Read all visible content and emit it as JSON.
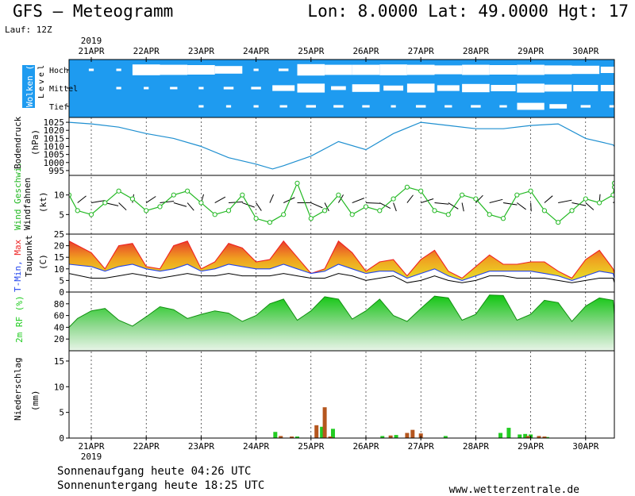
{
  "header": {
    "title": "GFS – Meteogramm",
    "coords": "Lon: 8.0000 Lat: 49.0000 Hgt: 17",
    "run": "Lauf: 12Z"
  },
  "footer": {
    "sunrise": "Sonnenaufgang heute 04:26 UTC",
    "sunset": "Sonnenuntergang heute 18:25 UTC",
    "site": "www.wetterzentrale.de"
  },
  "colors": {
    "cloud_bg": "#1e9bf0",
    "pressure": "#1e8fd0",
    "wind": "#22b822",
    "tmin": "#2244ee",
    "tmax": "#ee2222",
    "dewpoint": "#000000",
    "rh": "#22cc22",
    "precip_a": "#22cc22",
    "precip_b": "#b5561e"
  },
  "chart_data": [
    {
      "type": "heatmap",
      "title": "Wolken (%)",
      "ylabel": "Level",
      "levels": [
        "Hoch",
        "Mittel",
        "Tief"
      ],
      "day_labels": [
        "21APR",
        "22APR",
        "23APR",
        "24APR",
        "25APR",
        "26APR",
        "27APR",
        "28APR",
        "29APR",
        "30APR"
      ],
      "year": "2019",
      "x_days": [
        0,
        0.5,
        1,
        1.5,
        2,
        2.5,
        3,
        3.5,
        4,
        4.5,
        5,
        5.5,
        6,
        6.5,
        7,
        7.5,
        8,
        8.5,
        9,
        9.5,
        10
      ],
      "cover_hoch": [
        90,
        90,
        15,
        20,
        25,
        40,
        90,
        80,
        10,
        20,
        20,
        15,
        20,
        30,
        20,
        25,
        20,
        30,
        35,
        50,
        55
      ],
      "cover_mittel": [
        95,
        90,
        90,
        85,
        90,
        80,
        80,
        55,
        30,
        70,
        40,
        60,
        30,
        55,
        35,
        50,
        30,
        45,
        50,
        50,
        55
      ],
      "cover_tief": [
        95,
        95,
        95,
        95,
        90,
        90,
        90,
        85,
        80,
        80,
        85,
        90,
        80,
        85,
        80,
        85,
        45,
        65,
        80,
        85,
        40
      ]
    },
    {
      "type": "line",
      "ylabel": "Bodendruck",
      "unit": "(hPa)",
      "yticks": [
        995,
        1000,
        1005,
        1010,
        1015,
        1020,
        1025
      ],
      "ylim": [
        992,
        1028
      ],
      "x_days": [
        -0.5,
        0,
        0.5,
        1,
        1.5,
        2,
        2.5,
        3,
        3.3,
        3.5,
        4,
        4.5,
        5,
        5.5,
        6,
        6.5,
        7,
        7.5,
        8,
        8.5,
        9,
        9.5,
        10
      ],
      "values": [
        1025,
        1024,
        1022,
        1018,
        1015,
        1010,
        1003,
        999,
        996,
        998,
        1004,
        1013,
        1008,
        1018,
        1025,
        1023,
        1021,
        1021,
        1023,
        1024,
        1015,
        1011,
        1010
      ]
    },
    {
      "type": "line",
      "ylabel": "Wind Geschwi.",
      "ylabel2": "Windfahnen",
      "unit": "(kt)",
      "yticks": [
        5,
        10
      ],
      "ylim": [
        0,
        15
      ],
      "x_days": [
        -0.5,
        -0.25,
        0,
        0.25,
        0.5,
        0.75,
        1,
        1.25,
        1.5,
        1.75,
        2,
        2.25,
        2.5,
        2.75,
        3,
        3.25,
        3.5,
        3.75,
        4,
        4.25,
        4.5,
        4.75,
        5,
        5.25,
        5.5,
        5.75,
        6,
        6.25,
        6.5,
        6.75,
        7,
        7.25,
        7.5,
        7.75,
        8,
        8.25,
        8.5,
        8.75,
        9,
        9.25,
        9.5,
        9.75,
        10
      ],
      "values": [
        10,
        6,
        5,
        8,
        11,
        9,
        6,
        7,
        10,
        11,
        8,
        5,
        6,
        10,
        4,
        3,
        5,
        13,
        4,
        6,
        10,
        5,
        7,
        6,
        9,
        12,
        11,
        6,
        5,
        10,
        9,
        5,
        4,
        10,
        11,
        6,
        3,
        6,
        9,
        8,
        10,
        12,
        13
      ]
    },
    {
      "type": "line",
      "ylabel": "Taupunkt",
      "unit": "(C)",
      "legend": [
        "T-Min,",
        "Max"
      ],
      "yticks": [
        0,
        5,
        10,
        15,
        20,
        25
      ],
      "ylim": [
        0,
        25
      ],
      "x_days": [
        -0.5,
        0,
        0.25,
        0.5,
        0.75,
        1,
        1.25,
        1.5,
        1.75,
        2,
        2.25,
        2.5,
        2.75,
        3,
        3.25,
        3.5,
        3.75,
        4,
        4.25,
        4.5,
        4.75,
        5,
        5.25,
        5.5,
        5.75,
        6,
        6.25,
        6.5,
        6.75,
        7,
        7.25,
        7.5,
        7.75,
        8,
        8.25,
        8.5,
        8.75,
        9,
        9.25,
        9.5,
        9.75,
        10
      ],
      "series": [
        {
          "name": "Max",
          "values": [
            22,
            17,
            10,
            20,
            21,
            11,
            10,
            20,
            22,
            10,
            13,
            21,
            19,
            13,
            14,
            22,
            15,
            8,
            10,
            22,
            17,
            9,
            13,
            14,
            7,
            14,
            18,
            9,
            6,
            11,
            16,
            12,
            12,
            13,
            13,
            9,
            6,
            14,
            18,
            10,
            8,
            10
          ]
        },
        {
          "name": "T-Min,",
          "values": [
            12,
            11,
            9,
            11,
            12,
            10,
            9,
            10,
            12,
            9,
            10,
            12,
            11,
            10,
            10,
            12,
            10,
            8,
            9,
            12,
            10,
            8,
            9,
            9,
            6,
            8,
            10,
            7,
            5,
            7,
            9,
            9,
            9,
            9,
            8,
            7,
            5,
            7,
            9,
            8,
            6,
            7
          ]
        },
        {
          "name": "Taupunkt",
          "values": [
            8,
            6,
            6,
            7,
            8,
            7,
            6,
            7,
            8,
            7,
            7,
            8,
            7,
            7,
            7,
            8,
            7,
            6,
            6,
            8,
            7,
            5,
            6,
            7,
            4,
            5,
            7,
            5,
            4,
            5,
            7,
            7,
            6,
            6,
            6,
            5,
            4,
            5,
            6,
            6,
            4,
            5
          ]
        }
      ]
    },
    {
      "type": "area",
      "ylabel": "2m RF (%)",
      "yticks": [
        20,
        40,
        60,
        80
      ],
      "ylim": [
        0,
        100
      ],
      "x_days": [
        -0.5,
        -0.25,
        0,
        0.25,
        0.5,
        0.75,
        1,
        1.25,
        1.5,
        1.75,
        2,
        2.25,
        2.5,
        2.75,
        3,
        3.25,
        3.5,
        3.75,
        4,
        4.25,
        4.5,
        4.75,
        5,
        5.25,
        5.5,
        5.75,
        6,
        6.25,
        6.5,
        6.75,
        7,
        7.25,
        7.5,
        7.75,
        8,
        8.25,
        8.5,
        8.75,
        9,
        9.25,
        9.5,
        9.75,
        10
      ],
      "values": [
        40,
        55,
        68,
        72,
        52,
        42,
        58,
        75,
        70,
        55,
        62,
        68,
        64,
        50,
        60,
        80,
        88,
        52,
        68,
        92,
        88,
        54,
        68,
        88,
        60,
        50,
        72,
        93,
        90,
        52,
        62,
        95,
        94,
        52,
        62,
        86,
        82,
        50,
        76,
        90,
        86,
        62,
        56
      ]
    },
    {
      "type": "bar",
      "ylabel": "Niederschlag",
      "unit": "(mm)",
      "yticks": [
        0,
        5,
        10,
        15
      ],
      "ylim": [
        0,
        17
      ],
      "series": [
        {
          "name": "a",
          "bars": [
            [
              3.35,
              1.2
            ],
            [
              3.75,
              0.3
            ],
            [
              4.2,
              2.2
            ],
            [
              4.4,
              1.8
            ],
            [
              5.3,
              0.4
            ],
            [
              5.55,
              0.6
            ],
            [
              6.45,
              0.4
            ],
            [
              7.45,
              1.0
            ],
            [
              7.6,
              2.0
            ],
            [
              7.8,
              0.7
            ],
            [
              7.9,
              0.8
            ],
            [
              8.0,
              0.7
            ],
            [
              8.15,
              0.3
            ],
            [
              8.3,
              0.2
            ]
          ]
        },
        {
          "name": "b",
          "bars": [
            [
              3.45,
              0.4
            ],
            [
              3.65,
              0.3
            ],
            [
              4.1,
              2.5
            ],
            [
              4.25,
              6.0
            ],
            [
              4.35,
              0.3
            ],
            [
              5.45,
              0.5
            ],
            [
              5.75,
              1.0
            ],
            [
              5.85,
              1.6
            ],
            [
              6.0,
              0.9
            ],
            [
              7.95,
              0.4
            ],
            [
              8.15,
              0.4
            ],
            [
              8.25,
              0.3
            ],
            [
              9.6,
              0.8
            ],
            [
              9.95,
              0.2
            ]
          ]
        }
      ]
    }
  ]
}
